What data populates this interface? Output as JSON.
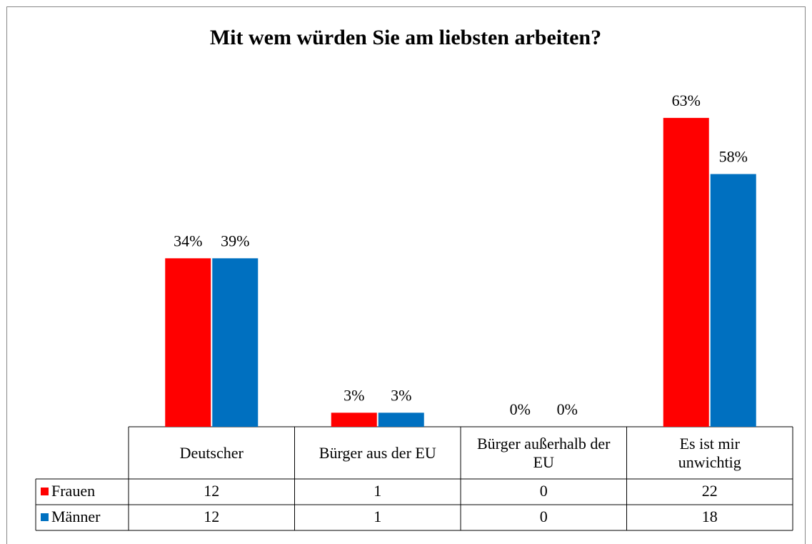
{
  "chart_data": {
    "type": "bar",
    "title": "Mit wem würden Sie am liebsten arbeiten?",
    "categories": [
      "Deutscher",
      "Bürger aus der EU",
      "Bürger außerhalb der EU",
      "Es ist mir unwichtig"
    ],
    "series": [
      {
        "name": "Frauen",
        "color": "#ff0000",
        "values": [
          12,
          1,
          0,
          22
        ],
        "percent_labels": [
          "34%",
          "3%",
          "0%",
          "63%"
        ]
      },
      {
        "name": "Männer",
        "color": "#0070c0",
        "values": [
          12,
          1,
          0,
          18
        ],
        "percent_labels": [
          "39%",
          "3%",
          "0%",
          "58%"
        ]
      }
    ]
  }
}
